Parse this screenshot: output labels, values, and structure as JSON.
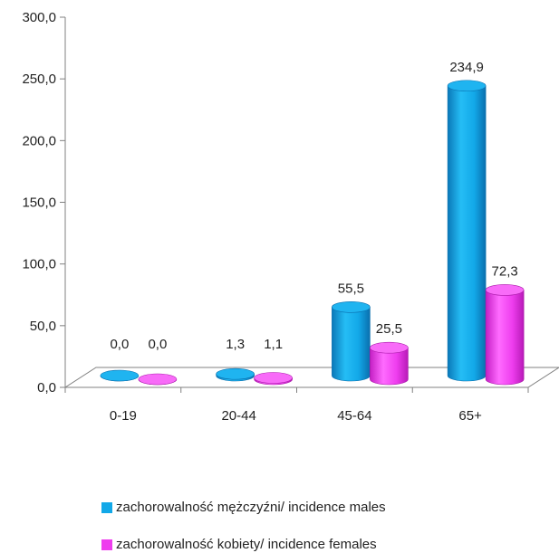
{
  "chart_data": {
    "type": "bar",
    "categories": [
      "0-19",
      "20-44",
      "45-64",
      "65+"
    ],
    "series": [
      {
        "name": "zachorowalność mężczyźni/ incidence males",
        "values": [
          0.0,
          1.3,
          55.5,
          234.9
        ],
        "labels": [
          "0,0",
          "1,3",
          "55,5",
          "234,9"
        ],
        "color": "#12A8E8"
      },
      {
        "name": "zachorowalność kobiety/ incidence females",
        "values": [
          0.0,
          1.1,
          25.5,
          72.3
        ],
        "labels": [
          "0,0",
          "1,1",
          "25,5",
          "72,3"
        ],
        "color": "#EE3DEE"
      }
    ],
    "ylim": [
      0,
      300
    ],
    "yticks": [
      0,
      50,
      100,
      150,
      200,
      250,
      300
    ],
    "ytick_labels": [
      "0,0",
      "50,0",
      "100,0",
      "150,0",
      "200,0",
      "250,0",
      "300,0"
    ],
    "grid": false,
    "legend_position": "bottom",
    "style": "3d-cylinder"
  }
}
